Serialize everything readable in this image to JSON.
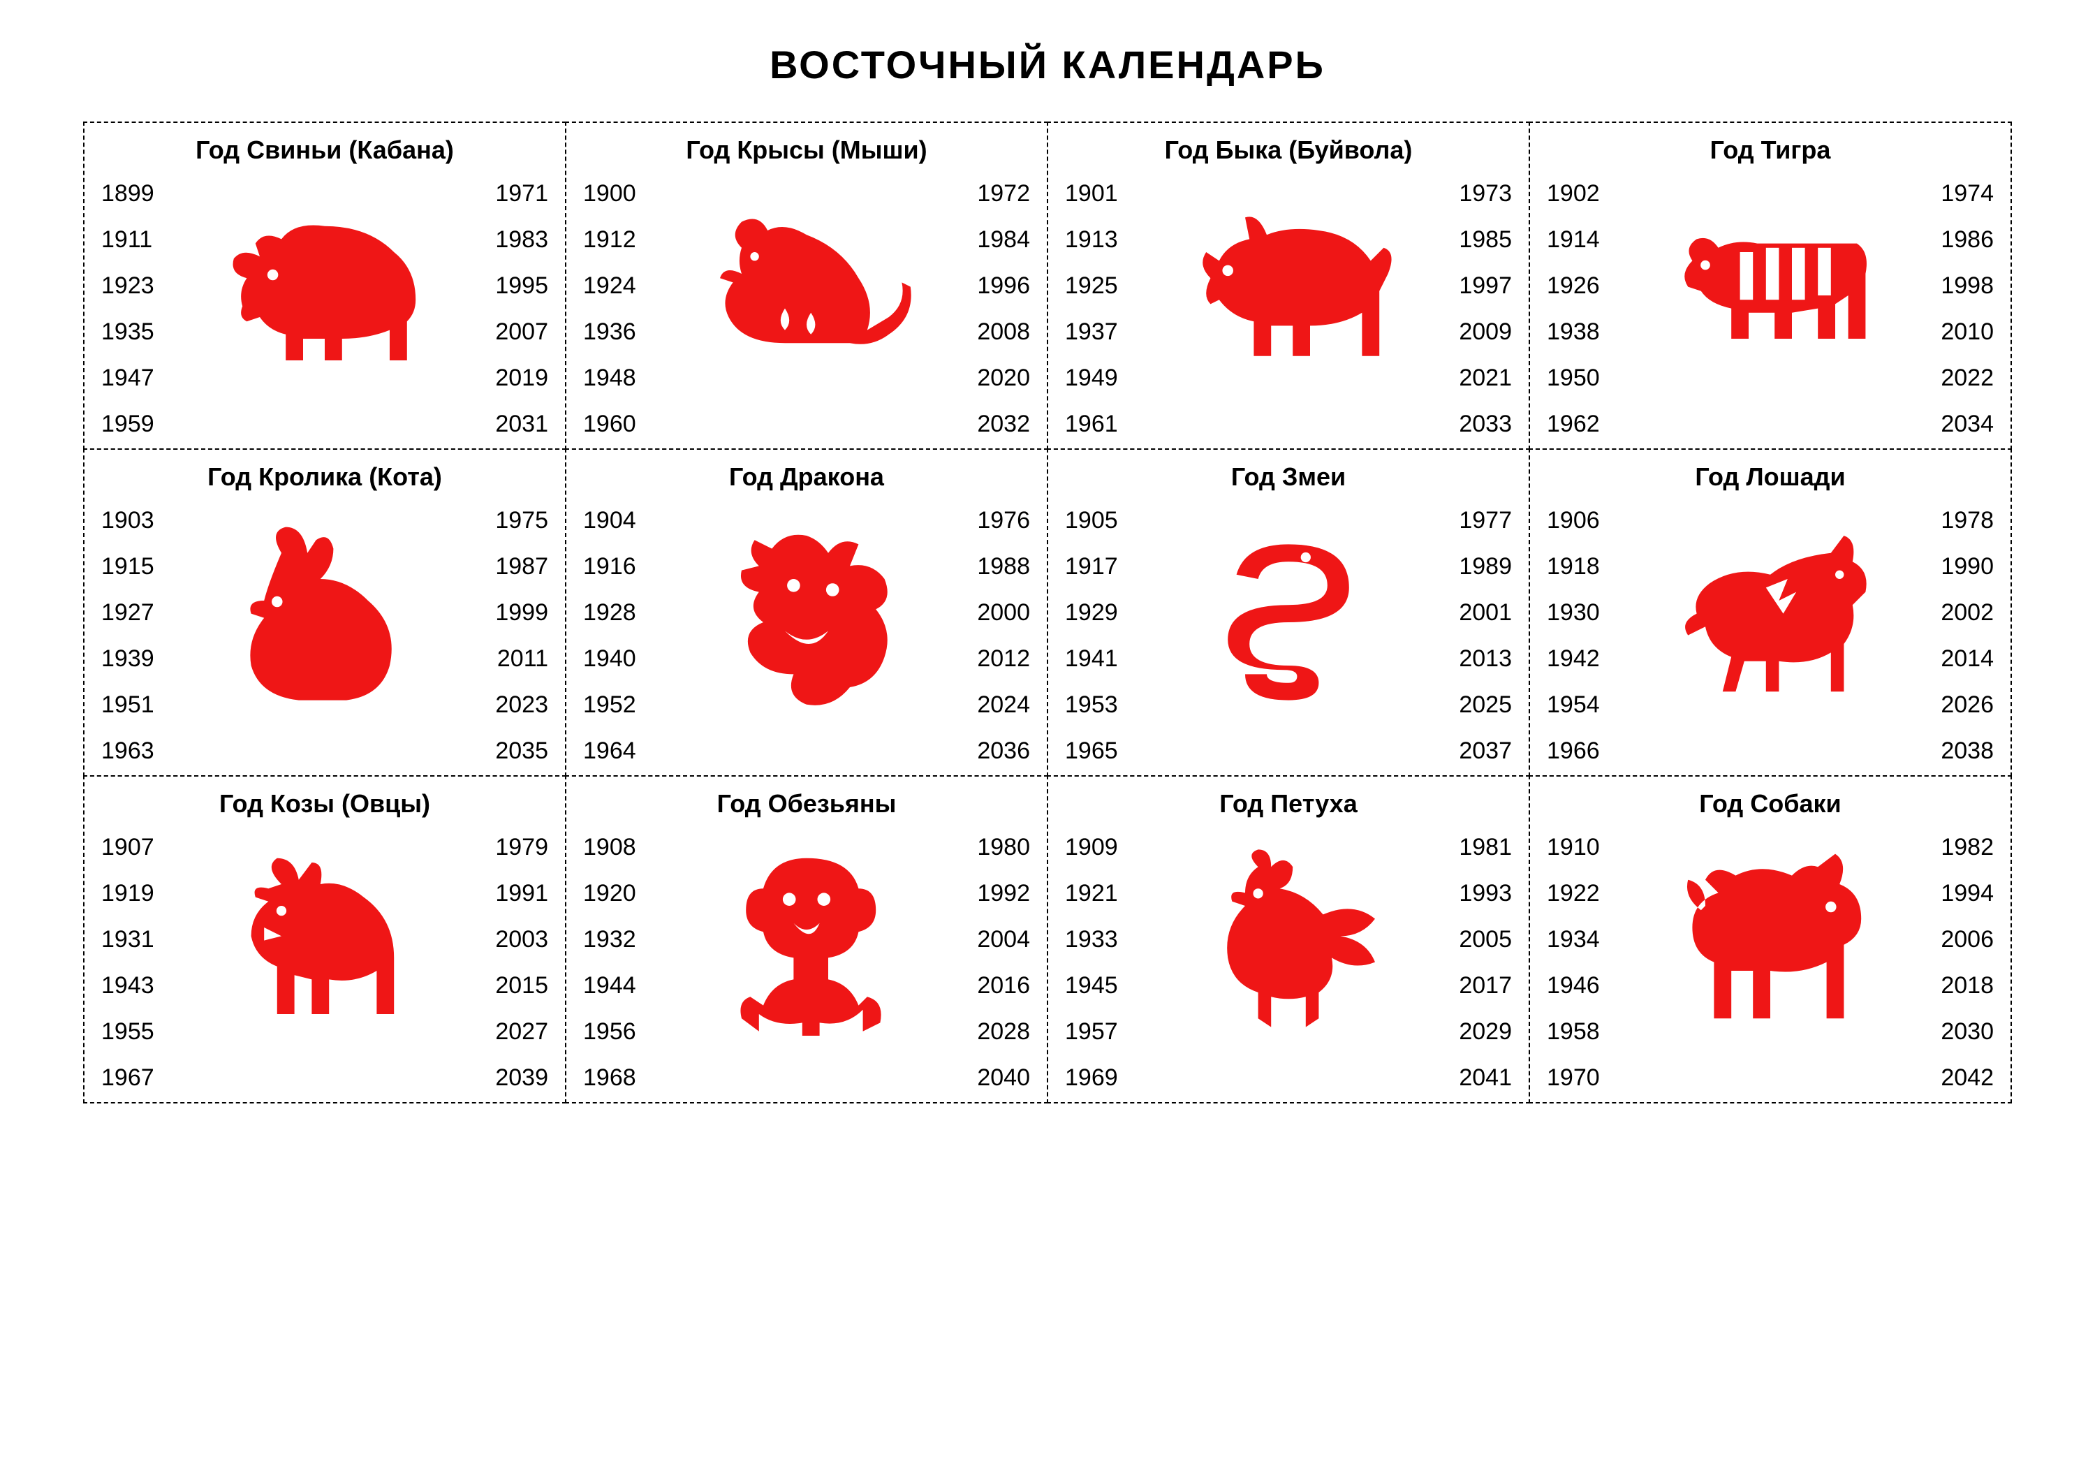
{
  "title": "ВОСТОЧНЫЙ КАЛЕНДАРЬ",
  "icon_color": "#ef1616",
  "text_color": "#000000",
  "border_style": "dashed",
  "background_color": "#ffffff",
  "grid": {
    "rows": 3,
    "cols": 4
  },
  "cells": [
    {
      "name": "Год Свиньи (Кабана)",
      "icon": "pig",
      "years_left": [
        "1899",
        "1911",
        "1923",
        "1935",
        "1947",
        "1959"
      ],
      "years_right": [
        "1971",
        "1983",
        "1995",
        "2007",
        "2019",
        "2031"
      ]
    },
    {
      "name": "Год Крысы (Мыши)",
      "icon": "rat",
      "years_left": [
        "1900",
        "1912",
        "1924",
        "1936",
        "1948",
        "1960"
      ],
      "years_right": [
        "1972",
        "1984",
        "1996",
        "2008",
        "2020",
        "2032"
      ]
    },
    {
      "name": "Год Быка (Буйвола)",
      "icon": "ox",
      "years_left": [
        "1901",
        "1913",
        "1925",
        "1937",
        "1949",
        "1961"
      ],
      "years_right": [
        "1973",
        "1985",
        "1997",
        "2009",
        "2021",
        "2033"
      ]
    },
    {
      "name": "Год Тигра",
      "icon": "tiger",
      "years_left": [
        "1902",
        "1914",
        "1926",
        "1938",
        "1950",
        "1962"
      ],
      "years_right": [
        "1974",
        "1986",
        "1998",
        "2010",
        "2022",
        "2034"
      ]
    },
    {
      "name": "Год Кролика (Кота)",
      "icon": "rabbit",
      "years_left": [
        "1903",
        "1915",
        "1927",
        "1939",
        "1951",
        "1963"
      ],
      "years_right": [
        "1975",
        "1987",
        "1999",
        "2011",
        "2023",
        "2035"
      ]
    },
    {
      "name": "Год Дракона",
      "icon": "dragon",
      "years_left": [
        "1904",
        "1916",
        "1928",
        "1940",
        "1952",
        "1964"
      ],
      "years_right": [
        "1976",
        "1988",
        "2000",
        "2012",
        "2024",
        "2036"
      ]
    },
    {
      "name": "Год Змеи",
      "icon": "snake",
      "years_left": [
        "1905",
        "1917",
        "1929",
        "1941",
        "1953",
        "1965"
      ],
      "years_right": [
        "1977",
        "1989",
        "2001",
        "2013",
        "2025",
        "2037"
      ]
    },
    {
      "name": "Год Лошади",
      "icon": "horse",
      "years_left": [
        "1906",
        "1918",
        "1930",
        "1942",
        "1954",
        "1966"
      ],
      "years_right": [
        "1978",
        "1990",
        "2002",
        "2014",
        "2026",
        "2038"
      ]
    },
    {
      "name": "Год Козы (Овцы)",
      "icon": "goat",
      "years_left": [
        "1907",
        "1919",
        "1931",
        "1943",
        "1955",
        "1967"
      ],
      "years_right": [
        "1979",
        "1991",
        "2003",
        "2015",
        "2027",
        "2039"
      ]
    },
    {
      "name": "Год Обезьяны",
      "icon": "monkey",
      "years_left": [
        "1908",
        "1920",
        "1932",
        "1944",
        "1956",
        "1968"
      ],
      "years_right": [
        "1980",
        "1992",
        "2004",
        "2016",
        "2028",
        "2040"
      ]
    },
    {
      "name": "Год Петуха",
      "icon": "rooster",
      "years_left": [
        "1909",
        "1921",
        "1933",
        "1945",
        "1957",
        "1969"
      ],
      "years_right": [
        "1981",
        "1993",
        "2005",
        "2017",
        "2029",
        "2041"
      ]
    },
    {
      "name": "Год Собаки",
      "icon": "dog",
      "years_left": [
        "1910",
        "1922",
        "1934",
        "1946",
        "1958",
        "1970"
      ],
      "years_right": [
        "1982",
        "1994",
        "2006",
        "2018",
        "2030",
        "2042"
      ]
    }
  ]
}
